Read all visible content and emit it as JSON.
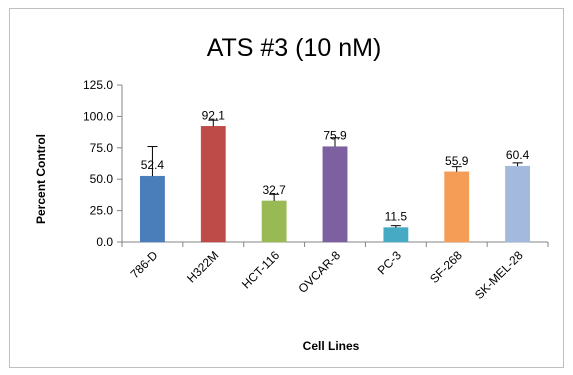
{
  "chart_data": {
    "type": "bar",
    "title": "ATS #3 (10 nM)",
    "xlabel": "Cell Lines",
    "ylabel": "Percent Control",
    "ylim": [
      0,
      125
    ],
    "yticks": [
      "0.0",
      "25.0",
      "50.0",
      "75.0",
      "100.0",
      "125.0"
    ],
    "categories": [
      "786-D",
      "H322M",
      "HCT-116",
      "OVCAR-8",
      "PC-3",
      "SF-268",
      "SK-MEL-28"
    ],
    "values": [
      52.4,
      92.1,
      32.7,
      75.9,
      11.5,
      55.9,
      60.4
    ],
    "value_labels": [
      "52.4",
      "92.1",
      "32.7",
      "75.9",
      "11.5",
      "55.9",
      "60.4"
    ],
    "error_plus": [
      23.6,
      4.9,
      5.3,
      7.1,
      1.5,
      4.1,
      2.6
    ],
    "colors": [
      "#4a7ebb",
      "#be4b48",
      "#98b954",
      "#7d60a0",
      "#46aac5",
      "#f59d56",
      "#a3b9dd"
    ],
    "grid": false,
    "legend": "none"
  }
}
